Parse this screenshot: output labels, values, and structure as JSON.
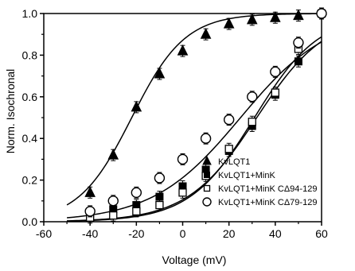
{
  "chart_data": {
    "type": "scatter",
    "xlabel": "Voltage (mV)",
    "ylabel": "Norm. Isochronal",
    "xlim": [
      -60,
      60
    ],
    "ylim": [
      0.0,
      1.0
    ],
    "xticks": [
      "-60",
      "-40",
      "-20",
      "0",
      "20",
      "40",
      "60"
    ],
    "yticks": [
      "0.0",
      "0.2",
      "0.4",
      "0.6",
      "0.8",
      "1.0"
    ],
    "legend_position": "bottom-right",
    "fit_curves": true,
    "series": [
      {
        "name": "KvLQT1",
        "marker": "filled-triangle",
        "x": [
          -40,
          -30,
          -20,
          -10,
          0,
          10,
          20,
          30,
          40,
          50
        ],
        "y": [
          0.14,
          0.32,
          0.55,
          0.71,
          0.82,
          0.9,
          0.95,
          0.97,
          0.98,
          0.99
        ],
        "fit": {
          "v_half": -22,
          "slope": 11.5
        }
      },
      {
        "name": "KvLQT1+MinK",
        "marker": "filled-square",
        "x": [
          -40,
          -30,
          -20,
          -10,
          0,
          10,
          20,
          30,
          40,
          50
        ],
        "y": [
          0.04,
          0.06,
          0.08,
          0.12,
          0.17,
          0.25,
          0.34,
          0.46,
          0.61,
          0.77
        ],
        "fit": {
          "v_half": 32,
          "slope": 15
        }
      },
      {
        "name": "KvLQT1+MinK CΔ94-129",
        "marker": "open-square",
        "x": [
          -40,
          -30,
          -20,
          -10,
          0,
          10,
          20,
          30,
          40,
          50,
          60
        ],
        "y": [
          0.02,
          0.03,
          0.05,
          0.08,
          0.14,
          0.22,
          0.35,
          0.48,
          0.62,
          0.83,
          1.0
        ],
        "fit": {
          "v_half": 31,
          "slope": 14
        }
      },
      {
        "name": "KvLQT1+MinK CΔ79-129",
        "marker": "open-circle",
        "x": [
          -40,
          -30,
          -20,
          -10,
          0,
          10,
          20,
          30,
          40,
          50,
          60
        ],
        "y": [
          0.05,
          0.1,
          0.14,
          0.21,
          0.3,
          0.4,
          0.49,
          0.6,
          0.72,
          0.86,
          1.0
        ],
        "fit": {
          "v_half": 25,
          "slope": 19
        }
      }
    ]
  }
}
